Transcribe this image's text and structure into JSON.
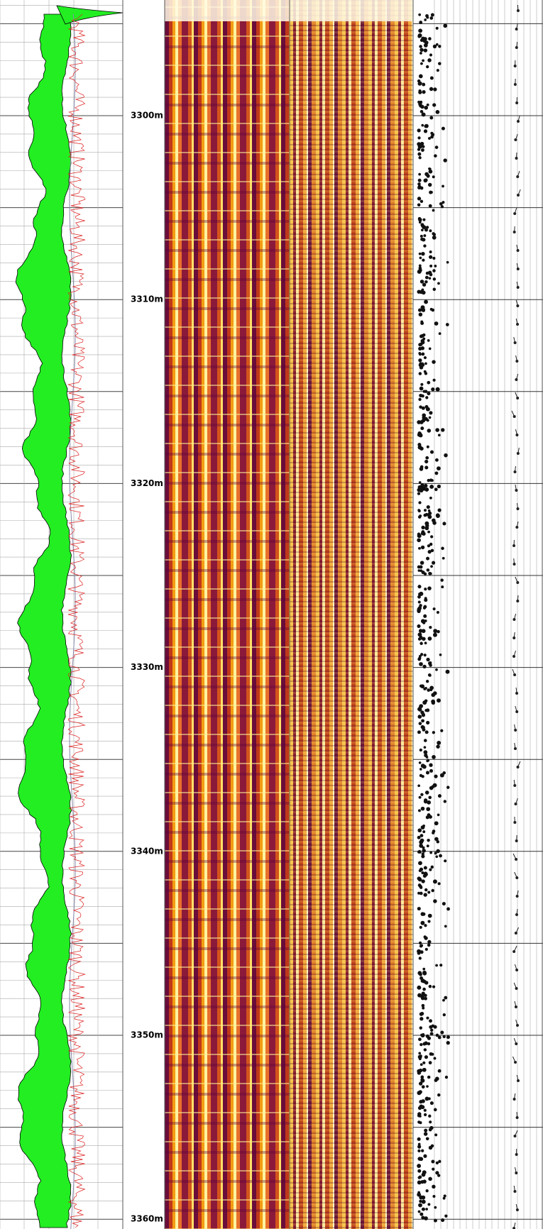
{
  "depth_track": {
    "labels": [
      "3300m",
      "3310m",
      "3320m",
      "3330m",
      "3340m",
      "3350m",
      "3360m"
    ]
  }
}
